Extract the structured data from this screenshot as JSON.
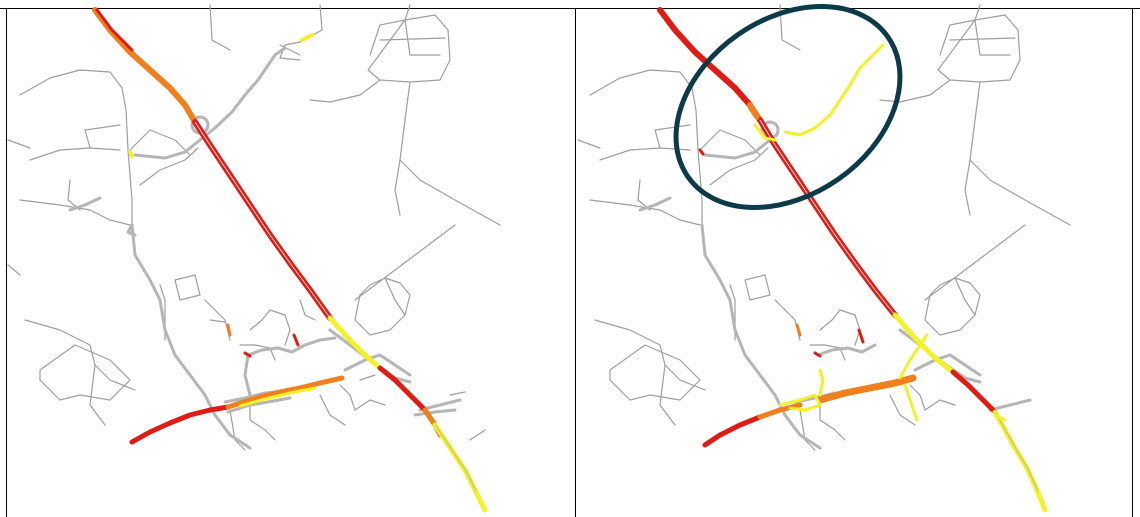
{
  "figure": {
    "panels": [
      {
        "id": "left",
        "description_label": ""
      },
      {
        "id": "right",
        "description_label": ""
      }
    ]
  },
  "colors": {
    "congestion_high": "#e01b14",
    "congestion_medium": "#f07f1e",
    "congestion_low": "#f3f226",
    "road_minor": "#9e9e9e",
    "road_unclassified": "#b5b5b5",
    "highlight_ellipse": "#0c3a48",
    "frame": "#000000"
  },
  "legend": []
}
